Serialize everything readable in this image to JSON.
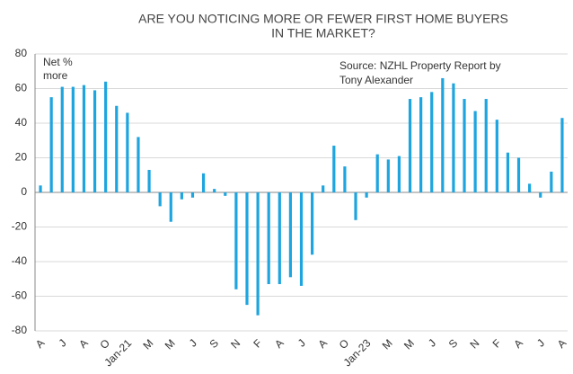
{
  "chart_data": {
    "type": "bar",
    "title": [
      "ARE YOU NOTICING MORE OR FEWER FIRST HOME BUYERS",
      "IN THE MARKET?"
    ],
    "annotations": [
      [
        "Net %",
        "more"
      ],
      [
        "Source: NZHL  Property Report by",
        "Tony Alexander"
      ]
    ],
    "categories": [
      "A",
      null,
      "J",
      null,
      "A",
      null,
      "O",
      null,
      "Jan-21",
      null,
      "M",
      null,
      "M",
      null,
      "J",
      null,
      "S",
      null,
      "N",
      null,
      "F",
      null,
      "A",
      null,
      "J",
      null,
      "A",
      null,
      "O",
      null,
      "Jan-23",
      null,
      "M",
      null,
      "M",
      null,
      "J",
      null,
      "S",
      null,
      "N",
      null,
      "F",
      null,
      "A",
      null,
      "J",
      null,
      "A"
    ],
    "values": [
      4,
      55,
      61,
      61,
      62,
      59,
      64,
      50,
      46,
      32,
      13,
      -8,
      -17,
      -4,
      -3,
      11,
      2,
      -2,
      -56,
      -65,
      -71,
      -53,
      -53,
      -49,
      -54,
      -36,
      4,
      27,
      15,
      -16,
      -3,
      22,
      19,
      21,
      54,
      55,
      58,
      66,
      63,
      54,
      47,
      54,
      42,
      23,
      20,
      5,
      -3,
      12,
      43
    ],
    "color": "#1ea5df",
    "ylim": [
      -80,
      80
    ],
    "yticks": [
      -80,
      -60,
      -40,
      -20,
      0,
      20,
      40,
      60,
      80
    ],
    "grid": true
  }
}
